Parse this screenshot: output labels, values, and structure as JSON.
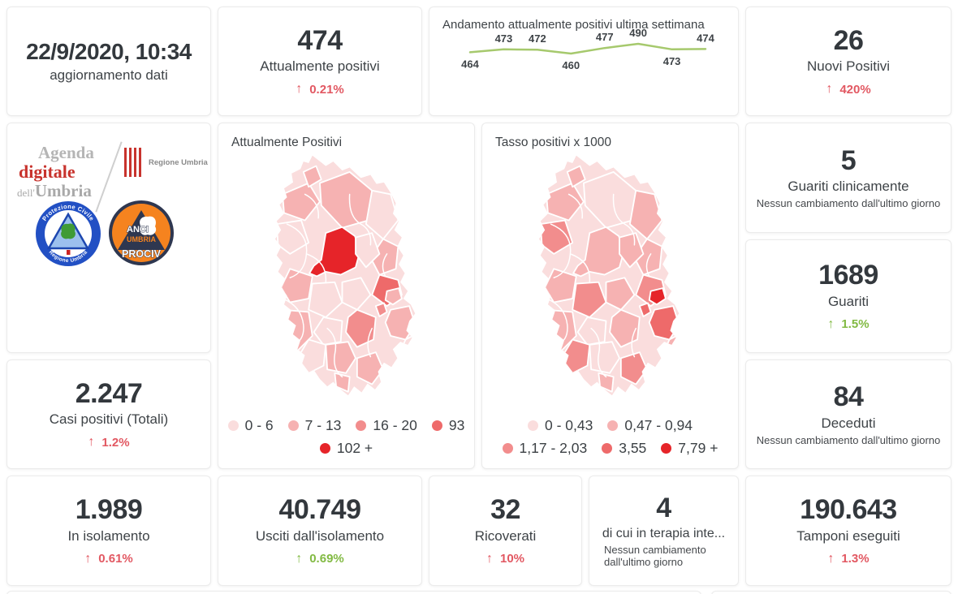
{
  "palette": {
    "map_colors": [
      "#fadddd",
      "#f6b2b2",
      "#f28d8d",
      "#ee6a6a",
      "#e62429"
    ],
    "delta_red": "#e25862",
    "delta_green": "#82ba43",
    "line_green": "#a6c96d",
    "text_dark": "#33383d"
  },
  "icons": {
    "up_arrow": "↑"
  },
  "header": {
    "date": "22/9/2020, 10:34",
    "subtitle": "aggiornamento dati"
  },
  "cards": {
    "attualmente_positivi": {
      "value": "474",
      "label": "Attualmente positivi",
      "delta": "0.21%"
    },
    "nuovi_positivi": {
      "value": "26",
      "label": "Nuovi Positivi",
      "delta": "420%"
    },
    "guariti_clinicamente": {
      "value": "5",
      "label": "Guariti clinicamente",
      "note": "Nessun cambiamento dall'ultimo giorno"
    },
    "guariti": {
      "value": "1689",
      "label": "Guariti",
      "delta": "1.5%"
    },
    "deceduti": {
      "value": "84",
      "label": "Deceduti",
      "note": "Nessun cambiamento dall'ultimo giorno"
    },
    "casi_totali": {
      "value": "2.247",
      "label": "Casi positivi (Totali)",
      "delta": "1.2%"
    },
    "in_isolamento": {
      "value": "1.989",
      "label": "In isolamento",
      "delta": "0.61%"
    },
    "usciti_isolamento": {
      "value": "40.749",
      "label": "Usciti dall'isolamento",
      "delta": "0.69%"
    },
    "ricoverati": {
      "value": "32",
      "label": "Ricoverati",
      "delta": "10%"
    },
    "terapia_intensiva": {
      "value": "4",
      "label": "di cui in terapia inte...",
      "note": "Nessun cambiamento dall'ultimo giorno"
    },
    "tamponi": {
      "value": "190.643",
      "label": "Tamponi eseguiti",
      "delta": "1.3%"
    }
  },
  "logos": {
    "agenda_line1": "Agenda",
    "agenda_line2": "digitale",
    "agenda_line3a": "dell'",
    "agenda_line3b": "Umbria",
    "regione_label": "Regione Umbria",
    "protezione_arc_top": "Protezione Civile",
    "protezione_arc_bottom": "Regione Umbria",
    "anci_line1": "ANCI",
    "anci_line2": "UMBRIA",
    "anci_line3": "PROCIV"
  },
  "chart_data": [
    {
      "type": "line",
      "title": "Andamento attualmente positivi ultima settimana",
      "values": [
        464,
        473,
        472,
        460,
        477,
        490,
        473,
        474
      ],
      "label_positions": [
        "below",
        "above",
        "above",
        "below",
        "above",
        "above",
        "below",
        "above"
      ],
      "line_color": "#a6c96d",
      "ylim": [
        455,
        495
      ],
      "grid": false,
      "legend": "none"
    },
    {
      "type": "choropleth",
      "title": "Attualmente Positivi",
      "region": "Umbria (comuni)",
      "legend_bins": [
        "0 - 6",
        "7 - 13",
        "16 - 20",
        "93",
        "102 +"
      ],
      "bin_colors": [
        "#fadddd",
        "#f6b2b2",
        "#f28d8d",
        "#ee6a6a",
        "#e62429"
      ],
      "legend_position": "bottom"
    },
    {
      "type": "choropleth",
      "title": "Tasso positivi x 1000",
      "region": "Umbria (comuni)",
      "legend_bins": [
        "0 - 0,43",
        "0,47 - 0,94",
        "1,17 - 2,03",
        "3,55",
        "7,79 +"
      ],
      "bin_colors": [
        "#fadddd",
        "#f6b2b2",
        "#f28d8d",
        "#ee6a6a",
        "#e62429"
      ],
      "legend_position": "bottom"
    }
  ]
}
